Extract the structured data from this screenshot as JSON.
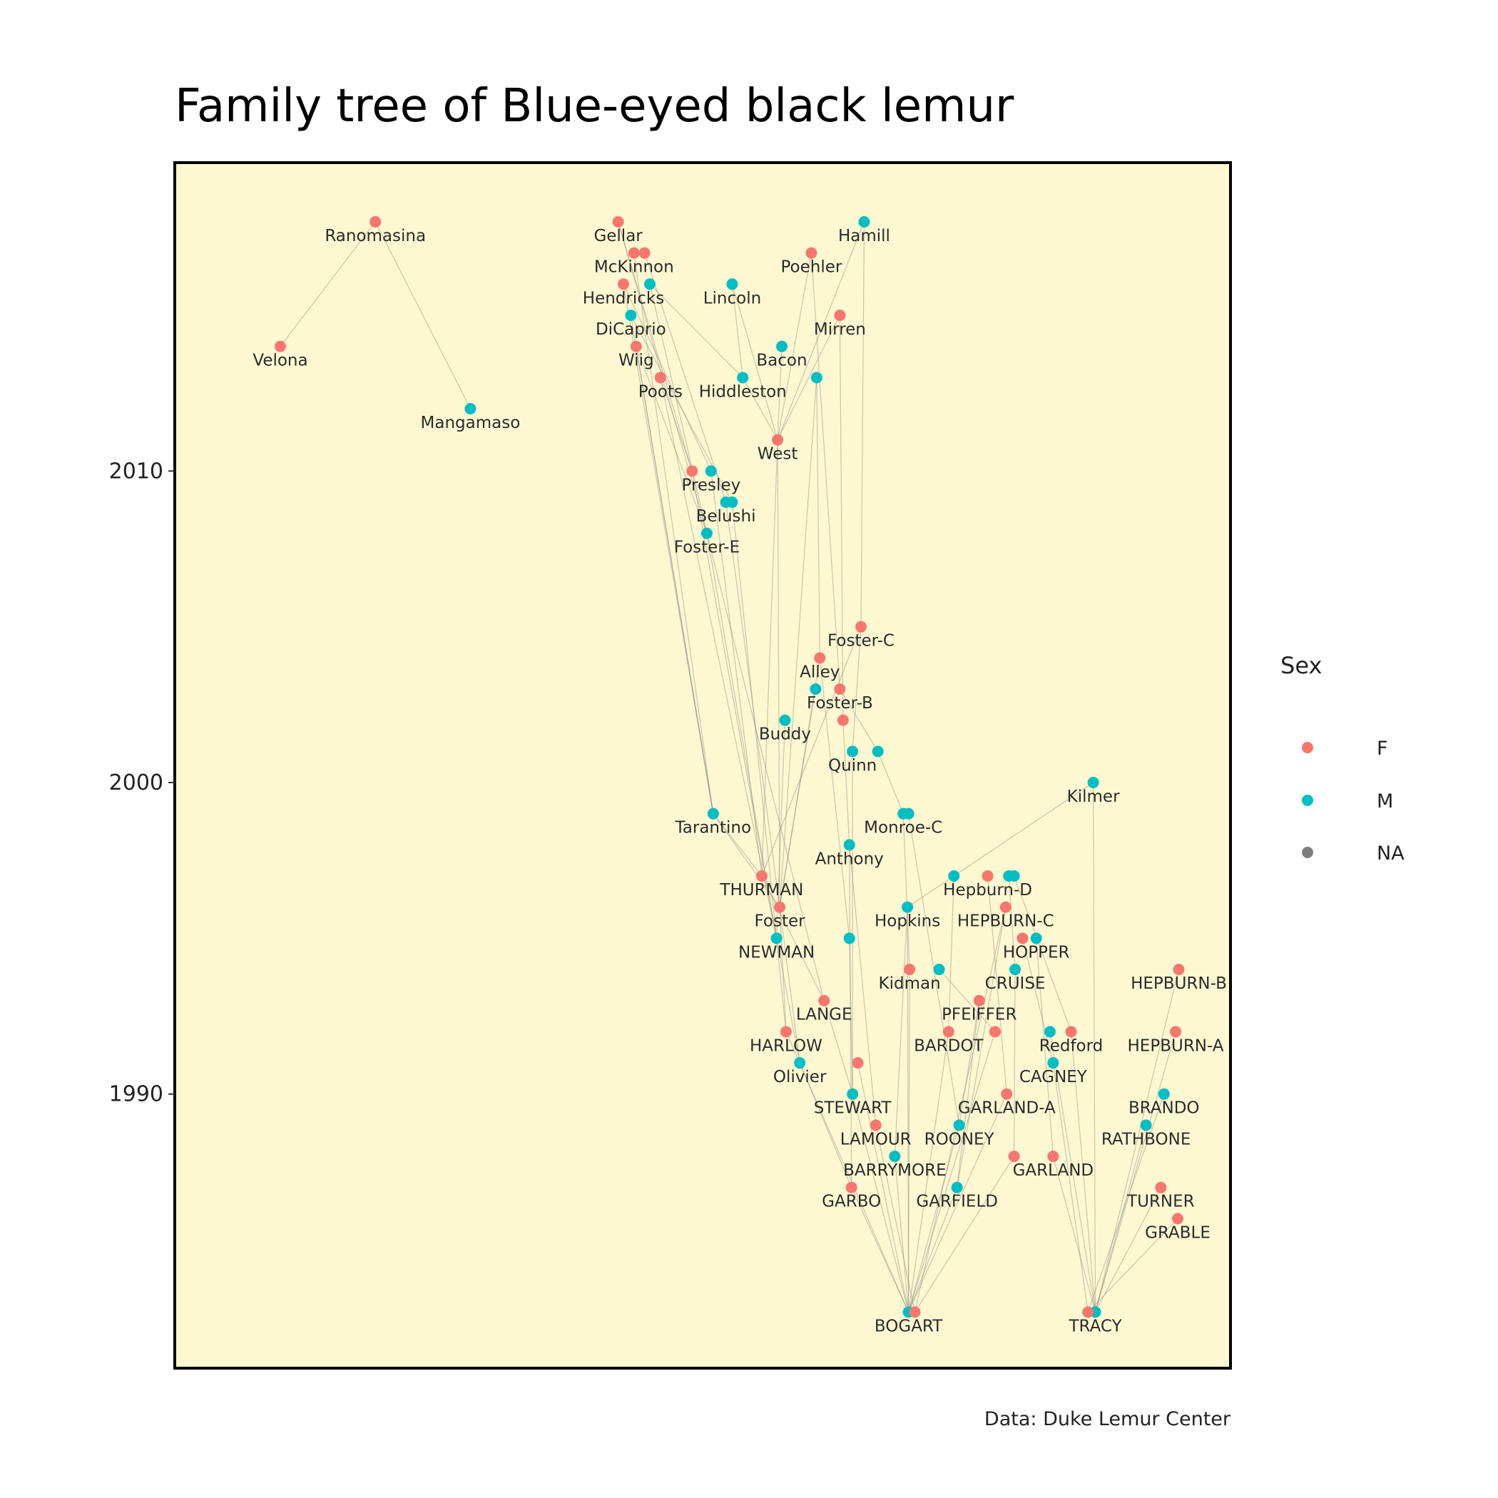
{
  "chart_data": {
    "type": "scatter",
    "title": "Family tree of Blue-eyed black lemur",
    "caption": "Data: Duke Lemur Center",
    "ylabel": "",
    "xlabel": "",
    "ylim": [
      1981.2,
      2019.9
    ],
    "y_ticks": [
      1990,
      2000,
      2010
    ],
    "grid": false,
    "panel_background": "#fdf8d2",
    "legend": {
      "title": "Sex",
      "position": "right",
      "entries": [
        {
          "label": "F",
          "color": "#f8766d"
        },
        {
          "label": "M",
          "color": "#00bfc4"
        },
        {
          "label": "NA",
          "color": "#7f7f7f"
        }
      ]
    },
    "colors": {
      "F": "#f8766d",
      "M": "#00bfc4",
      "NA": "#7f7f7f"
    },
    "nodes": [
      {
        "id": "ranomasina",
        "label": "Ranomasina",
        "sex": "F",
        "x": 0.19,
        "y": 2018
      },
      {
        "id": "velona",
        "label": "Velona",
        "sex": "F",
        "x": 0.1,
        "y": 2014
      },
      {
        "id": "mangamaso",
        "label": "Mangamaso",
        "sex": "M",
        "x": 0.28,
        "y": 2012
      },
      {
        "id": "gellar",
        "label": "Gellar",
        "sex": "F",
        "x": 0.42,
        "y": 2018
      },
      {
        "id": "mckinnon",
        "label": "McKinnon",
        "sex": "F",
        "x": 0.435,
        "y": 2017
      },
      {
        "id": "mckinnon2",
        "label": "",
        "sex": "F",
        "x": 0.445,
        "y": 2017
      },
      {
        "id": "hendricks",
        "label": "Hendricks",
        "sex": "F",
        "x": 0.425,
        "y": 2016
      },
      {
        "id": "hendricks_m",
        "label": "",
        "sex": "M",
        "x": 0.45,
        "y": 2016
      },
      {
        "id": "dicaprio",
        "label": "DiCaprio",
        "sex": "M",
        "x": 0.432,
        "y": 2015
      },
      {
        "id": "wiig",
        "label": "Wiig",
        "sex": "F",
        "x": 0.437,
        "y": 2014
      },
      {
        "id": "poots",
        "label": "Poots",
        "sex": "F",
        "x": 0.46,
        "y": 2013
      },
      {
        "id": "hamill",
        "label": "Hamill",
        "sex": "M",
        "x": 0.653,
        "y": 2018
      },
      {
        "id": "poehler",
        "label": "Poehler",
        "sex": "F",
        "x": 0.603,
        "y": 2017
      },
      {
        "id": "lincoln",
        "label": "Lincoln",
        "sex": "M",
        "x": 0.528,
        "y": 2016
      },
      {
        "id": "mirren",
        "label": "Mirren",
        "sex": "F",
        "x": 0.63,
        "y": 2015
      },
      {
        "id": "bacon",
        "label": "Bacon",
        "sex": "M",
        "x": 0.575,
        "y": 2014
      },
      {
        "id": "hiddleston",
        "label": "Hiddleston",
        "sex": "M",
        "x": 0.538,
        "y": 2013
      },
      {
        "id": "hiddleston_m2",
        "label": "",
        "sex": "M",
        "x": 0.608,
        "y": 2013
      },
      {
        "id": "west",
        "label": "West",
        "sex": "F",
        "x": 0.571,
        "y": 2011
      },
      {
        "id": "presley",
        "label": "Presley",
        "sex": "M",
        "x": 0.508,
        "y": 2010
      },
      {
        "id": "presley_f",
        "label": "",
        "sex": "F",
        "x": 0.49,
        "y": 2010
      },
      {
        "id": "belushi",
        "label": "Belushi",
        "sex": "M",
        "x": 0.522,
        "y": 2009
      },
      {
        "id": "belushi2",
        "label": "",
        "sex": "M",
        "x": 0.528,
        "y": 2009
      },
      {
        "id": "fostere",
        "label": "Foster-E",
        "sex": "M",
        "x": 0.504,
        "y": 2008
      },
      {
        "id": "fosterc",
        "label": "Foster-C",
        "sex": "F",
        "x": 0.65,
        "y": 2005
      },
      {
        "id": "alley",
        "label": "Alley",
        "sex": "F",
        "x": 0.611,
        "y": 2004
      },
      {
        "id": "fosterb",
        "label": "Foster-B",
        "sex": "F",
        "x": 0.63,
        "y": 2003
      },
      {
        "id": "fosterb_m",
        "label": "",
        "sex": "M",
        "x": 0.607,
        "y": 2003
      },
      {
        "id": "buddy",
        "label": "Buddy",
        "sex": "M",
        "x": 0.578,
        "y": 2002
      },
      {
        "id": "buddy_f",
        "label": "",
        "sex": "F",
        "x": 0.633,
        "y": 2002
      },
      {
        "id": "quinn",
        "label": "Quinn",
        "sex": "M",
        "x": 0.642,
        "y": 2001
      },
      {
        "id": "quinn2",
        "label": "",
        "sex": "M",
        "x": 0.666,
        "y": 2001
      },
      {
        "id": "kilmer",
        "label": "Kilmer",
        "sex": "M",
        "x": 0.87,
        "y": 2000
      },
      {
        "id": "tarantino",
        "label": "Tarantino",
        "sex": "M",
        "x": 0.51,
        "y": 1999
      },
      {
        "id": "monroec",
        "label": "Monroe-C",
        "sex": "M",
        "x": 0.69,
        "y": 1999
      },
      {
        "id": "monroec2",
        "label": "",
        "sex": "M",
        "x": 0.695,
        "y": 1999
      },
      {
        "id": "anthony",
        "label": "Anthony",
        "sex": "M",
        "x": 0.639,
        "y": 1998
      },
      {
        "id": "thurman",
        "label": "THURMAN",
        "sex": "F",
        "x": 0.556,
        "y": 1997
      },
      {
        "id": "hepburnd",
        "label": "Hepburn-D",
        "sex": "F",
        "x": 0.77,
        "y": 1997
      },
      {
        "id": "hepburnd_m1",
        "label": "",
        "sex": "M",
        "x": 0.738,
        "y": 1997
      },
      {
        "id": "hepburnd_m2",
        "label": "",
        "sex": "M",
        "x": 0.79,
        "y": 1997
      },
      {
        "id": "hepburnd_m3",
        "label": "",
        "sex": "M",
        "x": 0.795,
        "y": 1997
      },
      {
        "id": "foster",
        "label": "Foster",
        "sex": "F",
        "x": 0.573,
        "y": 1996
      },
      {
        "id": "hopkins",
        "label": "Hopkins",
        "sex": "M",
        "x": 0.694,
        "y": 1996
      },
      {
        "id": "hepburnc",
        "label": "HEPBURN-C",
        "sex": "F",
        "x": 0.787,
        "y": 1996
      },
      {
        "id": "newman",
        "label": "NEWMAN",
        "sex": "M",
        "x": 0.57,
        "y": 1995
      },
      {
        "id": "newman2",
        "label": "",
        "sex": "M",
        "x": 0.639,
        "y": 1995
      },
      {
        "id": "hopper",
        "label": "HOPPER",
        "sex": "M",
        "x": 0.816,
        "y": 1995
      },
      {
        "id": "hopper_f",
        "label": "",
        "sex": "F",
        "x": 0.803,
        "y": 1995
      },
      {
        "id": "kidman",
        "label": "Kidman",
        "sex": "F",
        "x": 0.696,
        "y": 1994
      },
      {
        "id": "kidman_m",
        "label": "",
        "sex": "M",
        "x": 0.724,
        "y": 1994
      },
      {
        "id": "cruise",
        "label": "CRUISE",
        "sex": "M",
        "x": 0.796,
        "y": 1994
      },
      {
        "id": "hepburnb",
        "label": "HEPBURN-B",
        "sex": "F",
        "x": 0.951,
        "y": 1994
      },
      {
        "id": "lange",
        "label": "LANGE",
        "sex": "F",
        "x": 0.615,
        "y": 1993
      },
      {
        "id": "pfeiffer",
        "label": "PFEIFFER",
        "sex": "F",
        "x": 0.762,
        "y": 1993
      },
      {
        "id": "harlow",
        "label": "HARLOW",
        "sex": "F",
        "x": 0.579,
        "y": 1992
      },
      {
        "id": "bardot",
        "label": "BARDOT",
        "sex": "F",
        "x": 0.733,
        "y": 1992
      },
      {
        "id": "bardot2",
        "label": "",
        "sex": "F",
        "x": 0.777,
        "y": 1992
      },
      {
        "id": "redford",
        "label": "Redford",
        "sex": "F",
        "x": 0.849,
        "y": 1992
      },
      {
        "id": "redford_m",
        "label": "",
        "sex": "M",
        "x": 0.829,
        "y": 1992
      },
      {
        "id": "hepburna",
        "label": "HEPBURN-A",
        "sex": "F",
        "x": 0.948,
        "y": 1992
      },
      {
        "id": "olivier",
        "label": "Olivier",
        "sex": "M",
        "x": 0.592,
        "y": 1991
      },
      {
        "id": "olivier_f",
        "label": "",
        "sex": "F",
        "x": 0.647,
        "y": 1991
      },
      {
        "id": "cagney",
        "label": "CAGNEY",
        "sex": "M",
        "x": 0.832,
        "y": 1991
      },
      {
        "id": "stewart",
        "label": "STEWART",
        "sex": "M",
        "x": 0.642,
        "y": 1990
      },
      {
        "id": "garlanda",
        "label": "GARLAND-A",
        "sex": "F",
        "x": 0.788,
        "y": 1990
      },
      {
        "id": "brando",
        "label": "BRANDO",
        "sex": "M",
        "x": 0.937,
        "y": 1990
      },
      {
        "id": "lamour",
        "label": "LAMOUR",
        "sex": "F",
        "x": 0.664,
        "y": 1989
      },
      {
        "id": "rooney",
        "label": "ROONEY",
        "sex": "M",
        "x": 0.743,
        "y": 1989
      },
      {
        "id": "rathbone",
        "label": "RATHBONE",
        "sex": "M",
        "x": 0.92,
        "y": 1989
      },
      {
        "id": "barrymore",
        "label": "BARRYMORE",
        "sex": "M",
        "x": 0.682,
        "y": 1988
      },
      {
        "id": "garland",
        "label": "GARLAND",
        "sex": "F",
        "x": 0.832,
        "y": 1988
      },
      {
        "id": "garland2",
        "label": "",
        "sex": "F",
        "x": 0.795,
        "y": 1988
      },
      {
        "id": "garbo",
        "label": "GARBO",
        "sex": "F",
        "x": 0.641,
        "y": 1987
      },
      {
        "id": "garfield",
        "label": "GARFIELD",
        "sex": "M",
        "x": 0.741,
        "y": 1987
      },
      {
        "id": "turner",
        "label": "TURNER",
        "sex": "F",
        "x": 0.934,
        "y": 1987
      },
      {
        "id": "grable",
        "label": "GRABLE",
        "sex": "F",
        "x": 0.95,
        "y": 1986
      },
      {
        "id": "bogart",
        "label": "BOGART",
        "sex": "M",
        "x": 0.695,
        "y": 1983
      },
      {
        "id": "bogart_f",
        "label": "",
        "sex": "F",
        "x": 0.701,
        "y": 1983
      },
      {
        "id": "tracy",
        "label": "TRACY",
        "sex": "M",
        "x": 0.872,
        "y": 1983
      },
      {
        "id": "tracy_f",
        "label": "",
        "sex": "F",
        "x": 0.865,
        "y": 1983
      }
    ],
    "edges": [
      [
        "ranomasina",
        "velona"
      ],
      [
        "ranomasina",
        "mangamaso"
      ],
      [
        "gellar",
        "fostere"
      ],
      [
        "gellar",
        "presley_f"
      ],
      [
        "mckinnon",
        "tarantino"
      ],
      [
        "mckinnon2",
        "belushi"
      ],
      [
        "hendricks",
        "tarantino"
      ],
      [
        "hendricks",
        "presley"
      ],
      [
        "hendricks_m",
        "hiddleston"
      ],
      [
        "hendricks_m",
        "fostere"
      ],
      [
        "dicaprio",
        "tarantino"
      ],
      [
        "dicaprio",
        "belushi2"
      ],
      [
        "wiig",
        "tarantino"
      ],
      [
        "wiig",
        "fostere"
      ],
      [
        "poots",
        "presley_f"
      ],
      [
        "poots",
        "newman"
      ],
      [
        "lincoln",
        "hiddleston"
      ],
      [
        "lincoln",
        "west"
      ],
      [
        "hamill",
        "fosterc"
      ],
      [
        "hamill",
        "west"
      ],
      [
        "poehler",
        "west"
      ],
      [
        "poehler",
        "fosterb"
      ],
      [
        "mirren",
        "buddy_f"
      ],
      [
        "mirren",
        "west"
      ],
      [
        "bacon",
        "west"
      ],
      [
        "hiddleston",
        "west"
      ],
      [
        "hiddleston_m2",
        "alley"
      ],
      [
        "hiddleston_m2",
        "foster"
      ],
      [
        "west",
        "foster"
      ],
      [
        "west",
        "thurman"
      ],
      [
        "presley",
        "thurman"
      ],
      [
        "presley_f",
        "newman"
      ],
      [
        "belushi",
        "foster"
      ],
      [
        "belushi2",
        "harlow"
      ],
      [
        "fostere",
        "newman"
      ],
      [
        "fostere",
        "lange"
      ],
      [
        "tarantino",
        "thurman"
      ],
      [
        "tarantino",
        "foster"
      ],
      [
        "fosterc",
        "quinn"
      ],
      [
        "fosterc",
        "thurman"
      ],
      [
        "alley",
        "foster"
      ],
      [
        "alley",
        "newman2"
      ],
      [
        "fosterb",
        "quinn2"
      ],
      [
        "fosterb_m",
        "foster"
      ],
      [
        "buddy",
        "newman"
      ],
      [
        "buddy_f",
        "anthony"
      ],
      [
        "quinn",
        "stewart"
      ],
      [
        "quinn2",
        "monroec"
      ],
      [
        "kilmer",
        "tracy"
      ],
      [
        "kilmer",
        "hopkins"
      ],
      [
        "monroec",
        "kidman"
      ],
      [
        "monroec2",
        "rooney"
      ],
      [
        "anthony",
        "lamour"
      ],
      [
        "anthony",
        "garbo"
      ],
      [
        "thurman",
        "lange"
      ],
      [
        "foster",
        "harlow"
      ],
      [
        "foster",
        "olivier"
      ],
      [
        "newman",
        "olivier"
      ],
      [
        "newman2",
        "stewart"
      ],
      [
        "hopkins",
        "barrymore"
      ],
      [
        "hepburnd",
        "garlanda"
      ],
      [
        "hepburnd_m1",
        "bardot"
      ],
      [
        "hepburnd_m2",
        "cruise"
      ],
      [
        "hepburnd_m3",
        "redford"
      ],
      [
        "hepburnc",
        "garfield"
      ],
      [
        "hopper",
        "garland"
      ],
      [
        "hopper_f",
        "cagney"
      ],
      [
        "cruise",
        "garland2"
      ],
      [
        "kidman",
        "bogart"
      ],
      [
        "kidman_m",
        "bardot2"
      ],
      [
        "lange",
        "stewart"
      ],
      [
        "pfeiffer",
        "rooney"
      ],
      [
        "harlow",
        "bogart"
      ],
      [
        "olivier",
        "garbo"
      ],
      [
        "olivier_f",
        "bogart"
      ],
      [
        "bardot",
        "bogart"
      ],
      [
        "bardot2",
        "bogart"
      ],
      [
        "redford",
        "tracy"
      ],
      [
        "redford_m",
        "tracy"
      ],
      [
        "cagney",
        "tracy_f"
      ],
      [
        "stewart",
        "bogart"
      ],
      [
        "garlanda",
        "bogart"
      ],
      [
        "lamour",
        "bogart_f"
      ],
      [
        "rooney",
        "bogart"
      ],
      [
        "barrymore",
        "bogart"
      ],
      [
        "garland",
        "tracy"
      ],
      [
        "garland2",
        "bogart_f"
      ],
      [
        "garbo",
        "bogart"
      ],
      [
        "garfield",
        "bogart"
      ],
      [
        "hepburnb",
        "tracy"
      ],
      [
        "hepburna",
        "tracy"
      ],
      [
        "brando",
        "tracy_f"
      ],
      [
        "rathbone",
        "tracy"
      ],
      [
        "turner",
        "tracy"
      ],
      [
        "grable",
        "tracy_f"
      ],
      [
        "hepburnc",
        "bogart_f"
      ],
      [
        "pfeiffer",
        "garfield"
      ],
      [
        "hopkins",
        "bogart"
      ]
    ]
  }
}
